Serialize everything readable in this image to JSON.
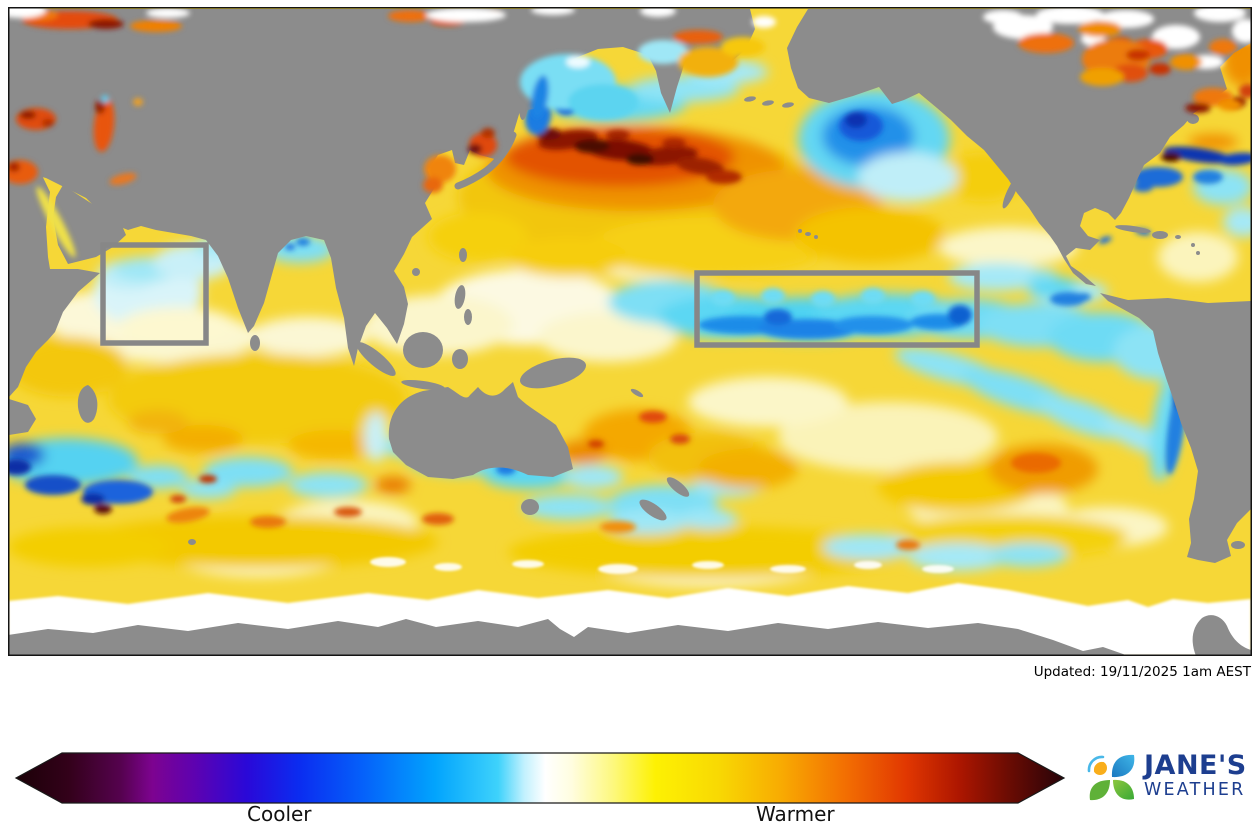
{
  "map": {
    "updated_text": "Updated: 19/11/2025 1am AEST",
    "land_color": "#8c8c8c",
    "ice_color": "#ffffff",
    "border_color": "#141414",
    "highlight_box_color": "#878787",
    "ocean_base_color": "#f6d737"
  },
  "legend": {
    "cooler_label": "Cooler",
    "warmer_label": "Warmer",
    "gradient_stops": [
      {
        "o": 0.0,
        "c": "#1b0107"
      },
      {
        "o": 0.05,
        "c": "#33011a"
      },
      {
        "o": 0.1,
        "c": "#55024e"
      },
      {
        "o": 0.13,
        "c": "#7d0390"
      },
      {
        "o": 0.17,
        "c": "#5e02b0"
      },
      {
        "o": 0.22,
        "c": "#2a08d8"
      },
      {
        "o": 0.27,
        "c": "#0b2cf0"
      },
      {
        "o": 0.33,
        "c": "#0560fa"
      },
      {
        "o": 0.4,
        "c": "#02a4fd"
      },
      {
        "o": 0.46,
        "c": "#3ed2fb"
      },
      {
        "o": 0.485,
        "c": "#c2f1fe"
      },
      {
        "o": 0.505,
        "c": "#ffffff"
      },
      {
        "o": 0.53,
        "c": "#fffde0"
      },
      {
        "o": 0.57,
        "c": "#fdf87d"
      },
      {
        "o": 0.61,
        "c": "#fdf103"
      },
      {
        "o": 0.67,
        "c": "#f8d903"
      },
      {
        "o": 0.73,
        "c": "#f8ab02"
      },
      {
        "o": 0.79,
        "c": "#f37002"
      },
      {
        "o": 0.85,
        "c": "#e13701"
      },
      {
        "o": 0.9,
        "c": "#ad1600"
      },
      {
        "o": 0.95,
        "c": "#670b03"
      },
      {
        "o": 1.0,
        "c": "#270309"
      }
    ]
  },
  "branding": {
    "name_line1": "JANE'S",
    "name_line2": "WEATHER",
    "text_color": "#1d3e8f"
  }
}
